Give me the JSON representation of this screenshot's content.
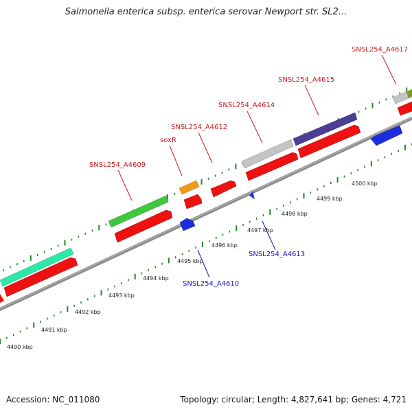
{
  "title": "Salmonella enterica subsp. enterica serovar Newport str. SL2...",
  "footer": {
    "accession": "Accession: NC_011080",
    "info": "Topology: circular; Length: 4,827,641 bp; Genes: 4,721"
  },
  "colors": {
    "backbone": "#8c8c8c",
    "tick": "#1f8a1f",
    "forward_label": "#cc1a1a",
    "reverse_label": "#1414bb",
    "cds": "#ee1111",
    "gene_teal": "#2ee8a8",
    "gene_green": "#3ec83e",
    "gene_orange": "#f09a1a",
    "gene_grey": "#c4c4c4",
    "gene_navy": "#4a3f94",
    "gene_olive": "#7a9a2a",
    "gene_blue": "#1a2ee0"
  },
  "scale_labels": [
    "4490 kbp",
    "4491 kbp",
    "4492 kbp",
    "4493 kbp",
    "4494 kbp",
    "4495 kbp",
    "4496 kbp",
    "4497 kbp",
    "4498 kbp",
    "4499 kbp",
    "4500 kbp"
  ],
  "forward_labels": [
    "SNSL254_A4609",
    "soxR",
    "SNSL254_A4612",
    "SNSL254_A4614",
    "SNSL254_A4615",
    "SNSL254_A4617"
  ],
  "reverse_labels": [
    "SNSL254_A4610",
    "SNSL254_A4613"
  ]
}
